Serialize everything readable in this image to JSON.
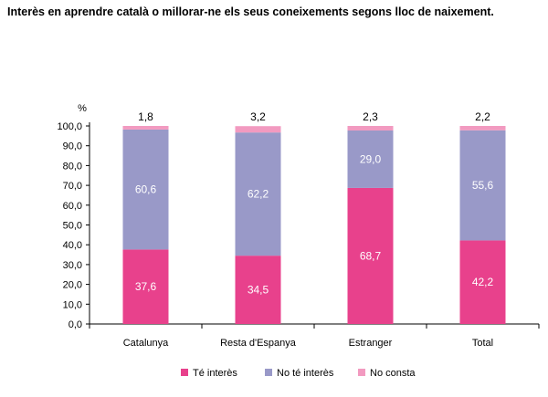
{
  "chart_data": {
    "type": "bar",
    "stacked": true,
    "title": "Interès en aprendre català o millorar-ne els seus coneixements segons lloc de naixement.",
    "ylabel": "%",
    "ylim": [
      0,
      100
    ],
    "yticks": [
      "0,0",
      "10,0",
      "20,0",
      "30,0",
      "40,0",
      "50,0",
      "60,0",
      "70,0",
      "80,0",
      "90,0",
      "100,0"
    ],
    "categories": [
      "Catalunya",
      "Resta d'Espanya",
      "Estranger",
      "Total"
    ],
    "series": [
      {
        "name": "Té interès",
        "color": "#e8418c",
        "values": [
          37.6,
          34.5,
          68.7,
          42.2
        ],
        "labels": [
          "37,6",
          "34,5",
          "68,7",
          "42,2"
        ]
      },
      {
        "name": "No té interès",
        "color": "#9999c8",
        "values": [
          60.6,
          62.2,
          29.0,
          55.6
        ],
        "labels": [
          "60,6",
          "62,2",
          "29,0",
          "55,6"
        ]
      },
      {
        "name": "No consta",
        "color": "#f29ac0",
        "values": [
          1.8,
          3.2,
          2.3,
          2.2
        ],
        "labels": [
          "1,8",
          "3,2",
          "2,3",
          "2,2"
        ]
      }
    ],
    "legend_position": "bottom",
    "grid": false
  }
}
